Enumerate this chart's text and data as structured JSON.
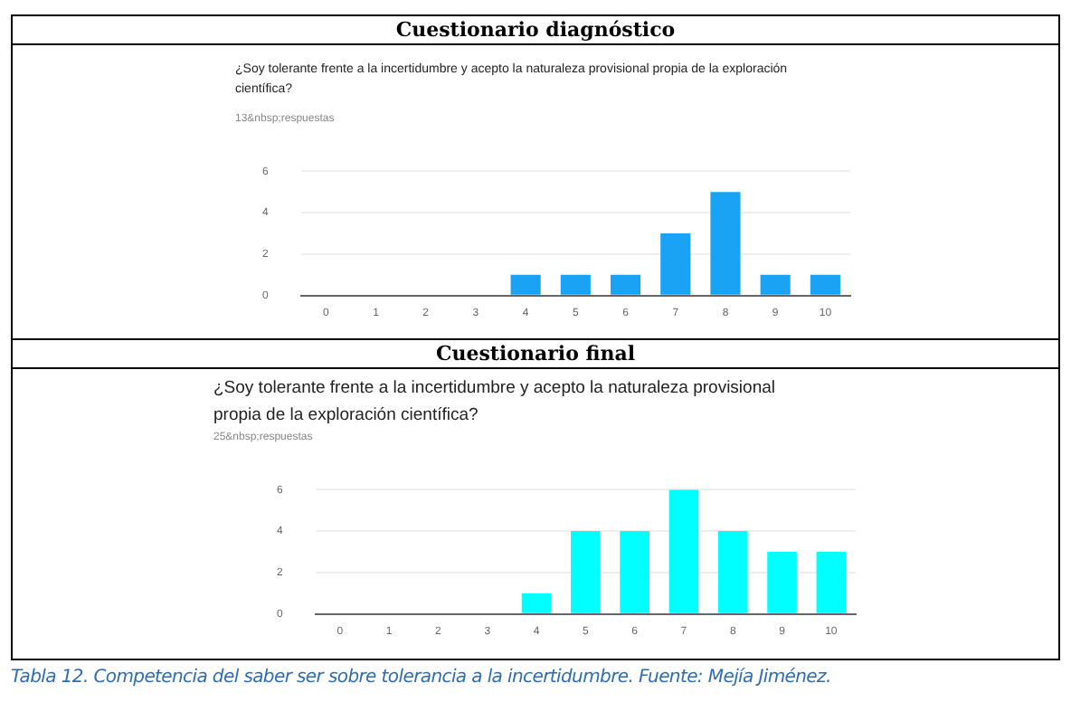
{
  "chart_data": [
    {
      "type": "bar",
      "title": "Cuestionario  diagnóstico",
      "subtitle": "¿Soy tolerante frente a la incertidumbre y acepto la naturaleza provisional propia de la exploración científica?",
      "annotations": [
        "13&nbsp;respuestas"
      ],
      "categories": [
        "0",
        "1",
        "2",
        "3",
        "4",
        "5",
        "6",
        "7",
        "8",
        "9",
        "10"
      ],
      "values": [
        0,
        0,
        0,
        0,
        1,
        1,
        1,
        3,
        5,
        1,
        1
      ],
      "color": "#1aa3f5",
      "ylim": [
        0,
        6
      ],
      "yticks": [
        0,
        2,
        4,
        6
      ],
      "grid": "y"
    },
    {
      "type": "bar",
      "title": "Cuestionario  final",
      "subtitle": "¿Soy tolerante frente a la incertidumbre y acepto  la naturaleza provisional propia de la exploración científica?",
      "annotations": [
        "25&nbsp;respuestas",
        "Tabla 12. Competencia del saber ser sobre tolerancia a la incertidumbre. Fuente: Mejía Jiménez."
      ],
      "categories": [
        "0",
        "1",
        "2",
        "3",
        "4",
        "5",
        "6",
        "7",
        "8",
        "9",
        "10"
      ],
      "values": [
        0,
        0,
        0,
        0,
        1,
        4,
        4,
        6,
        4,
        3,
        3
      ],
      "color": "#00ffff",
      "ylim": [
        0,
        6
      ],
      "yticks": [
        0,
        2,
        4,
        6
      ],
      "grid": "y"
    }
  ]
}
